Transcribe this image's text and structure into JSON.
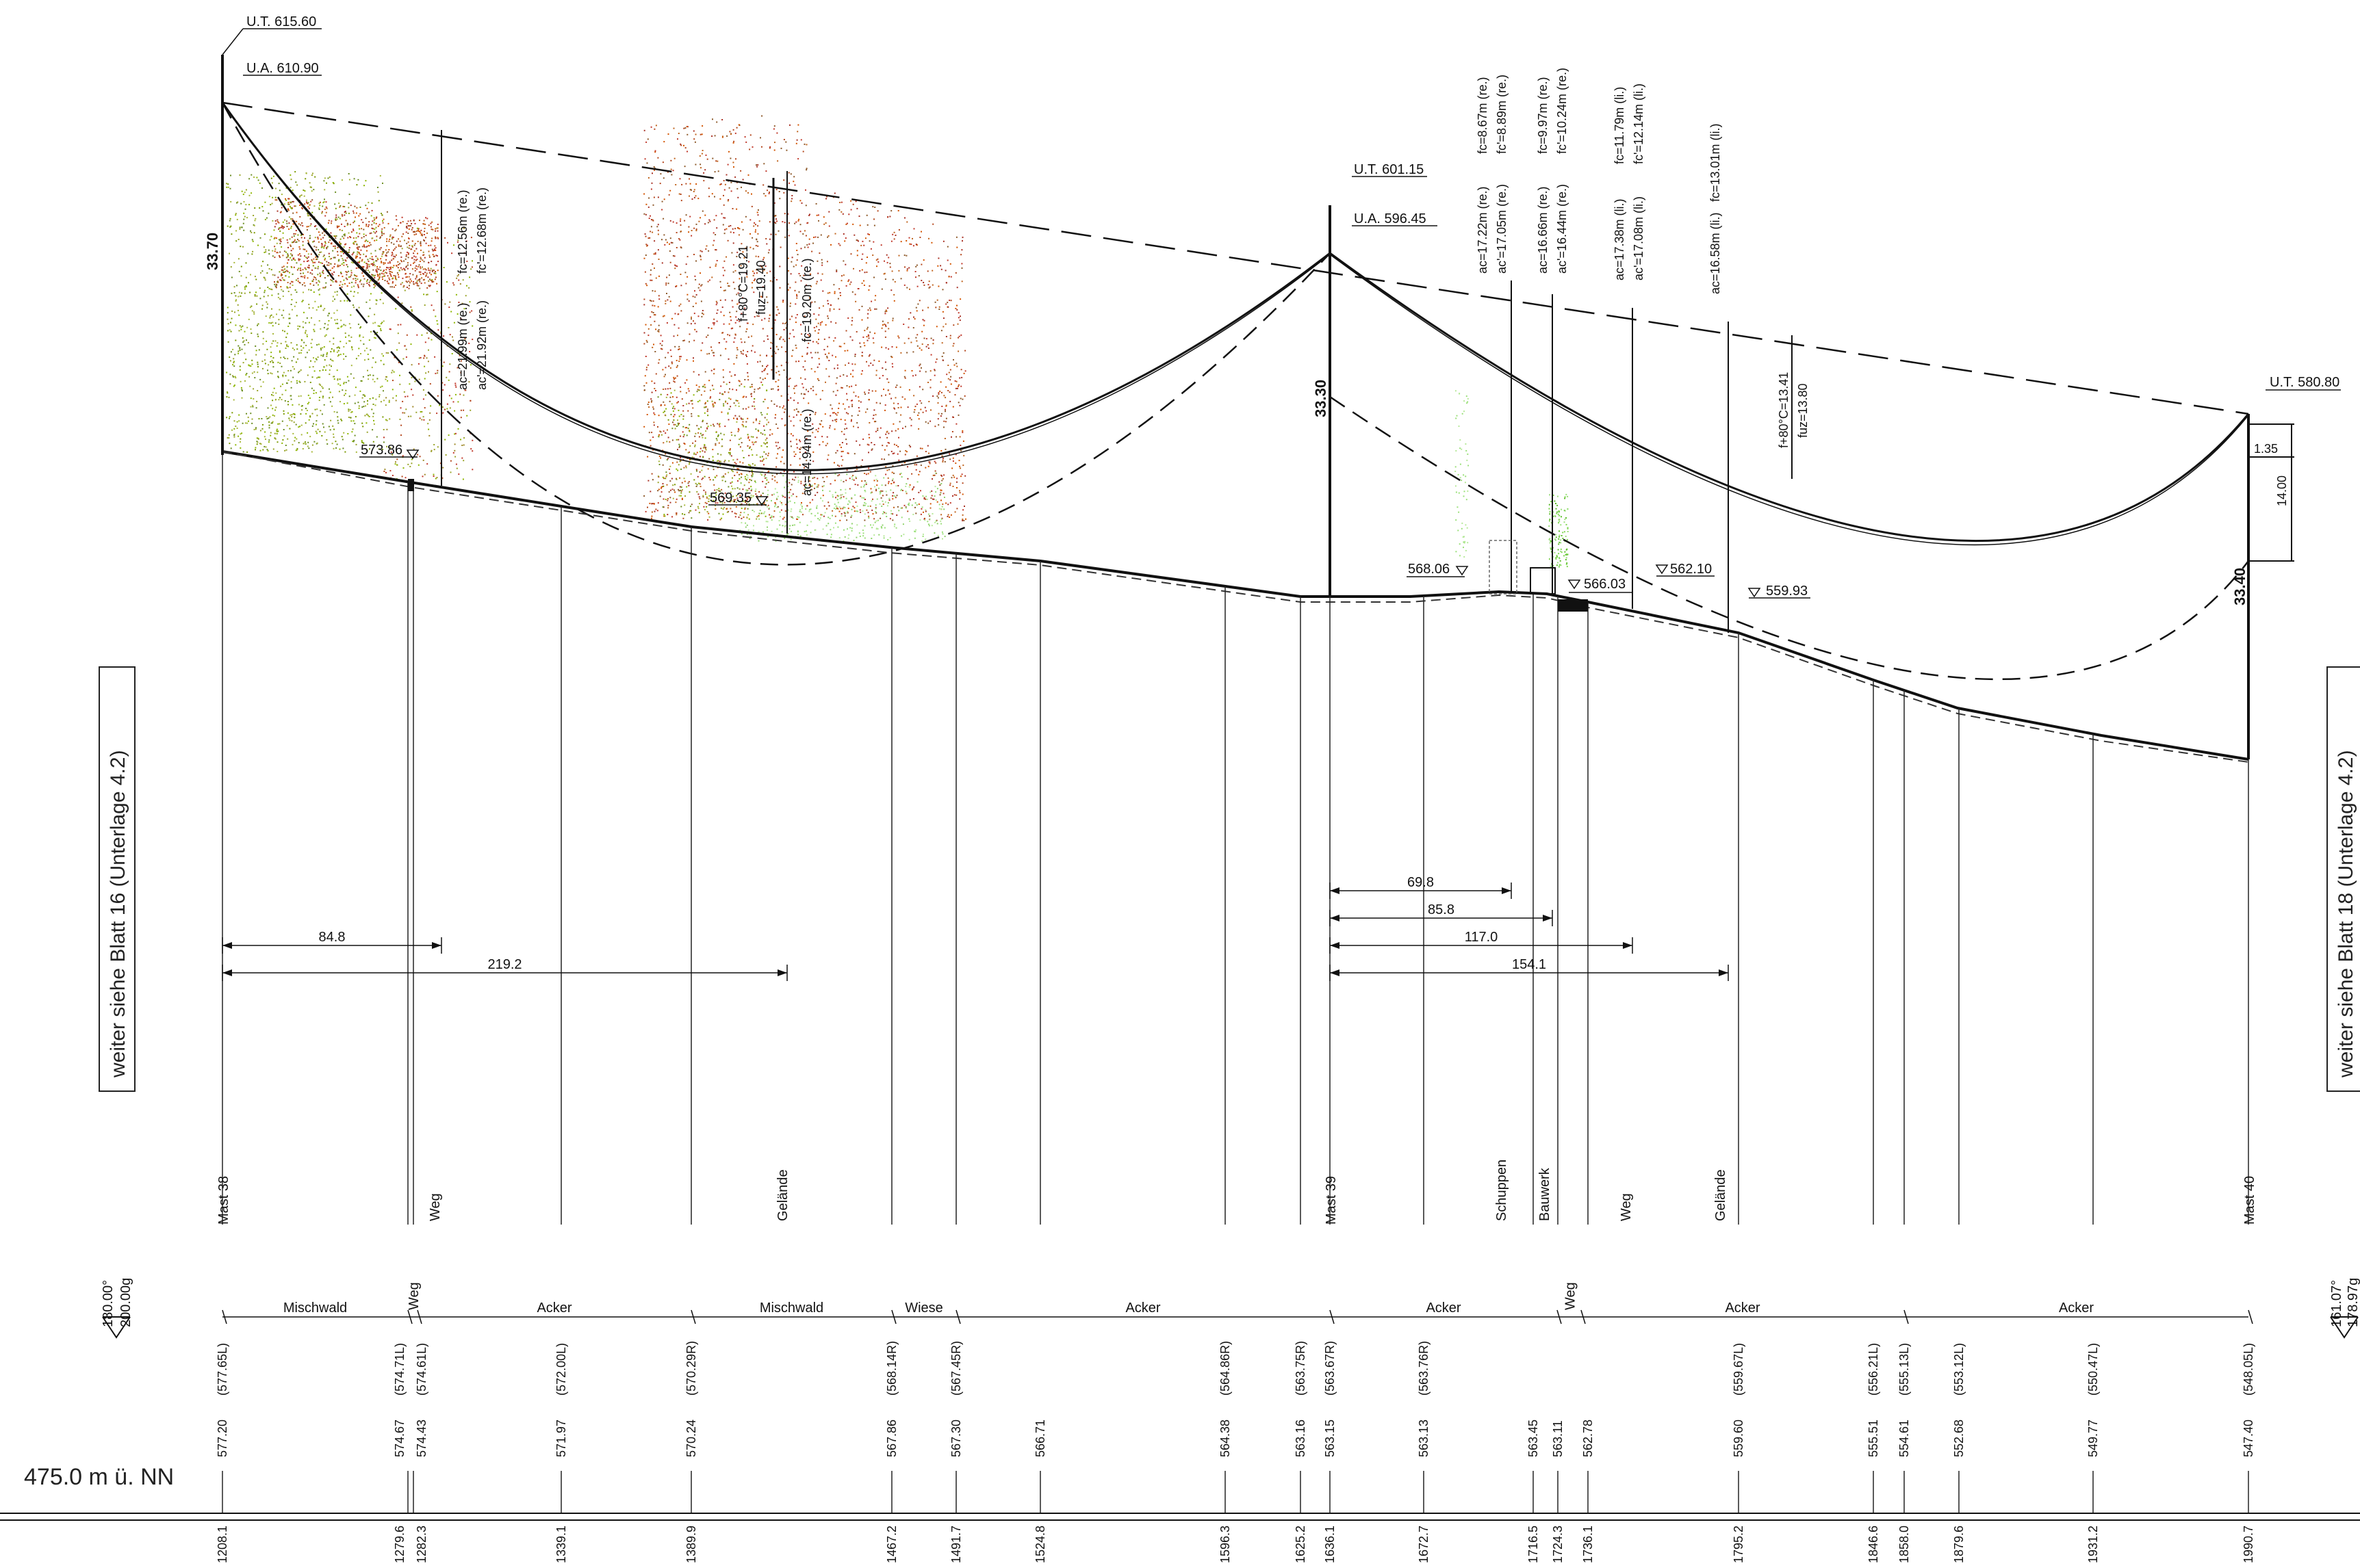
{
  "elevation_ref": "475.0 m ü. NN",
  "side_left": "weiter siehe Blatt 16 (Unterlage 4.2)",
  "side_right": "weiter siehe Blatt 18 (Unterlage 4.2)",
  "angle_left": [
    "180.00°",
    "200.00g"
  ],
  "angle_right": [
    "161.07°",
    "178.97g"
  ],
  "masts": [
    {
      "name": "Mast 38",
      "ut": "U.T. 615.60",
      "ua": "U.A. 610.90",
      "height": "33.70"
    },
    {
      "name": "Mast 39",
      "ut": "U.T. 601.15",
      "ua": "U.A. 596.45",
      "height": "33.30"
    },
    {
      "name": "Mast 40",
      "ut": "U.T. 580.80",
      "ua": "",
      "height": "33.40"
    }
  ],
  "crossing_labels": [
    "Weg",
    "Gelände",
    "Schuppen",
    "Bauwerk",
    "Weg",
    "Gelände"
  ],
  "spot_elevations": [
    "573.86",
    "569.35",
    "568.06",
    "566.03",
    "562.10",
    "559.93"
  ],
  "annotations": [
    "ac=21.99m (re.)",
    "ac'=21.92m (re.)",
    "fc=12.56m (re.)",
    "fc'=12.68m (re.)",
    "f+80°C=19.21",
    "fuz=19.40",
    "fc=19.20m (re.)",
    "ac=14.94m (re.)",
    "ac=17.22m (re.)",
    "ac'=17.05m (re.)",
    "fc=8.67m (re.)",
    "fc'=8.89m (re.)",
    "ac=16.66m (re.)",
    "ac'=16.44m (re.)",
    "fc=9.97m (re.)",
    "fc'=10.24m (re.)",
    "ac=17.38m (li.)",
    "ac'=17.08m (li.)",
    "fc=11.79m (li.)",
    "fc'=12.14m (li.)",
    "ac=16.58m (li.)",
    "fc=13.01m (li.)",
    "f+80°C=13.41",
    "fuz=13.80",
    "1.35",
    "14.00"
  ],
  "distances_left": [
    "84.8",
    "219.2"
  ],
  "distances_right": [
    "69.8",
    "85.8",
    "117.0",
    "154.1"
  ],
  "land_use": [
    {
      "label": "Mischwald"
    },
    {
      "label": "Weg"
    },
    {
      "label": "Acker"
    },
    {
      "label": "Mischwald"
    },
    {
      "label": "Wiese"
    },
    {
      "label": "Acker"
    },
    {
      "label": "Acker"
    },
    {
      "label": "Weg"
    },
    {
      "label": "Acker"
    },
    {
      "label": "Acker"
    }
  ],
  "stations": [
    {
      "station": "1208.1",
      "h": "577.20",
      "hb": "(577.65L)"
    },
    {
      "station": "1279.6",
      "h": "574.67",
      "hb": "(574.71L)"
    },
    {
      "station": "1282.3",
      "h": "574.43",
      "hb": "(574.61L)"
    },
    {
      "station": "1339.1",
      "h": "571.97",
      "hb": "(572.00L)"
    },
    {
      "station": "1389.9",
      "h": "570.24",
      "hb": "(570.29R)"
    },
    {
      "station": "1467.2",
      "h": "567.86",
      "hb": "(568.14R)"
    },
    {
      "station": "1491.7",
      "h": "567.30",
      "hb": "(567.45R)"
    },
    {
      "station": "1524.8",
      "h": "566.71",
      "hb": ""
    },
    {
      "station": "1596.3",
      "h": "564.38",
      "hb": "(564.86R)"
    },
    {
      "station": "1625.2",
      "h": "563.16",
      "hb": "(563.75R)"
    },
    {
      "station": "1636.1",
      "h": "563.15",
      "hb": "(563.67R)"
    },
    {
      "station": "1672.7",
      "h": "563.13",
      "hb": "(563.76R)"
    },
    {
      "station": "1716.5",
      "h": "563.45",
      "hb": ""
    },
    {
      "station": "1724.3",
      "h": "563.11",
      "hb": ""
    },
    {
      "station": "1736.1",
      "h": "562.78",
      "hb": ""
    },
    {
      "station": "1795.2",
      "h": "559.60",
      "hb": "(559.67L)"
    },
    {
      "station": "1846.6",
      "h": "555.51",
      "hb": "(556.21L)"
    },
    {
      "station": "1858.0",
      "h": "554.61",
      "hb": "(555.13L)"
    },
    {
      "station": "1879.6",
      "h": "552.68",
      "hb": "(553.12L)"
    },
    {
      "station": "1931.2",
      "h": "549.77",
      "hb": "(550.47L)"
    },
    {
      "station": "1990.7",
      "h": "547.40",
      "hb": "(548.05L)"
    }
  ]
}
